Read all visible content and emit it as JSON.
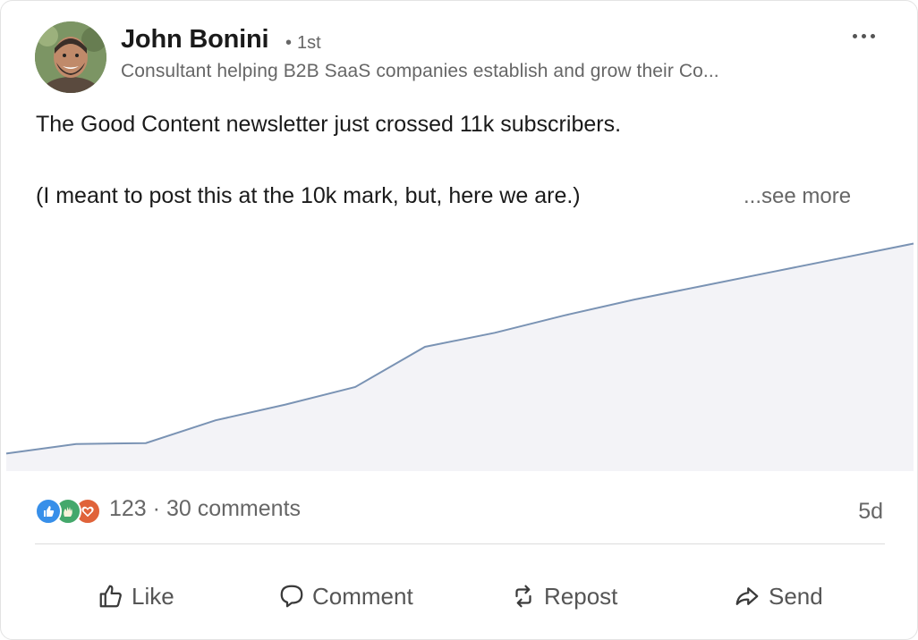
{
  "author": {
    "name": "John Bonini",
    "degree": "1st",
    "headline": "Consultant helping B2B SaaS companies establish and grow their Co..."
  },
  "post": {
    "line1": "The Good Content newsletter just crossed 11k subscribers.",
    "line2": "(I meant to post this at the 10k mark, but, here we are.)",
    "see_more": "...see more"
  },
  "chart_data": {
    "type": "area",
    "x": [
      0,
      1,
      2,
      3,
      4,
      5,
      6,
      7,
      8,
      9,
      10,
      11,
      12,
      13
    ],
    "y": [
      1.0,
      1.55,
      1.6,
      2.9,
      3.8,
      4.8,
      7.1,
      7.9,
      8.9,
      9.8,
      10.6,
      11.4,
      12.2,
      13.0
    ],
    "ylim": [
      0,
      14.2
    ],
    "grid": false,
    "colors": {
      "line": "#7a93b4",
      "fill": "#f3f3f7"
    }
  },
  "social": {
    "reactions_icons": [
      "like-icon",
      "celebrate-icon",
      "love-icon"
    ],
    "reaction_count": "123",
    "separator": "·",
    "comments": "30 comments",
    "time": "5d"
  },
  "actions": {
    "like": "Like",
    "comment": "Comment",
    "repost": "Repost",
    "send": "Send"
  }
}
